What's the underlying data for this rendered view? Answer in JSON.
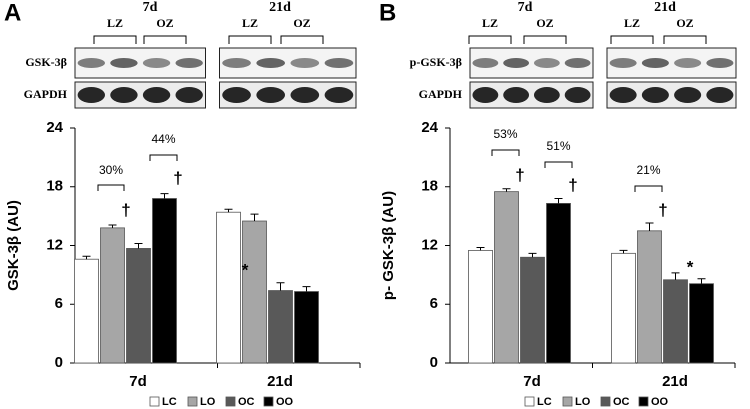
{
  "panels": [
    {
      "letter": "A",
      "blot": {
        "times": [
          "7d",
          "21d"
        ],
        "zones": [
          "LZ",
          "OZ",
          "LZ",
          "OZ"
        ],
        "rows": [
          "GSK-3β",
          "GAPDH"
        ]
      }
    },
    {
      "letter": "B",
      "blot": {
        "times": [
          "7d",
          "21d"
        ],
        "zones": [
          "LZ",
          "OZ",
          "LZ",
          "OZ"
        ],
        "rows": [
          "p-GSK-3β",
          "GAPDH"
        ]
      }
    }
  ],
  "chart_data": [
    {
      "type": "bar",
      "ylabel": "GSK-3β (AU)",
      "categories": [
        "7d",
        "21d"
      ],
      "series": [
        {
          "name": "LC",
          "color": "#ffffff",
          "values": [
            10.6,
            15.4
          ],
          "errors": [
            0.3,
            0.3
          ]
        },
        {
          "name": "LO",
          "color": "#a6a6a6",
          "values": [
            13.8,
            14.5
          ],
          "errors": [
            0.3,
            0.7
          ]
        },
        {
          "name": "OC",
          "color": "#595959",
          "values": [
            11.7,
            7.4
          ],
          "errors": [
            0.5,
            0.8
          ]
        },
        {
          "name": "OO",
          "color": "#000000",
          "values": [
            16.8,
            7.3
          ],
          "errors": [
            0.5,
            0.5
          ]
        }
      ],
      "ylim": [
        0,
        24
      ],
      "yticks": [
        0,
        6,
        12,
        18,
        24
      ],
      "annotations": [
        "30%",
        "44%",
        "†",
        "†",
        "*"
      ]
    },
    {
      "type": "bar",
      "ylabel": "p- GSK-3β (AU)",
      "categories": [
        "7d",
        "21d"
      ],
      "series": [
        {
          "name": "LC",
          "color": "#ffffff",
          "values": [
            11.5,
            11.2
          ],
          "errors": [
            0.3,
            0.3
          ]
        },
        {
          "name": "LO",
          "color": "#a6a6a6",
          "values": [
            17.5,
            13.5
          ],
          "errors": [
            0.3,
            0.8
          ]
        },
        {
          "name": "OC",
          "color": "#595959",
          "values": [
            10.8,
            8.5
          ],
          "errors": [
            0.4,
            0.7
          ]
        },
        {
          "name": "OO",
          "color": "#000000",
          "values": [
            16.3,
            8.1
          ],
          "errors": [
            0.5,
            0.5
          ]
        }
      ],
      "ylim": [
        0,
        24
      ],
      "yticks": [
        0,
        6,
        12,
        18,
        24
      ],
      "annotations": [
        "53%",
        "51%",
        "†",
        "†",
        "21%",
        "†",
        "*"
      ]
    }
  ]
}
